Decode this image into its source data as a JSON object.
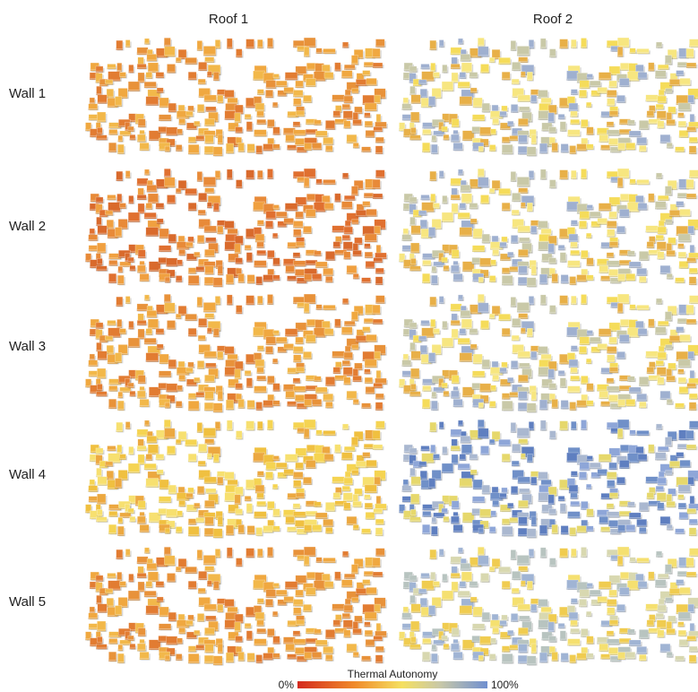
{
  "columns": [
    "Roof 1",
    "Roof 2"
  ],
  "rows": [
    "Wall 1",
    "Wall 2",
    "Wall 3",
    "Wall 4",
    "Wall 5"
  ],
  "legend": {
    "title": "Thermal Autonomy",
    "min_label": "0%",
    "max_label": "100%"
  }
}
